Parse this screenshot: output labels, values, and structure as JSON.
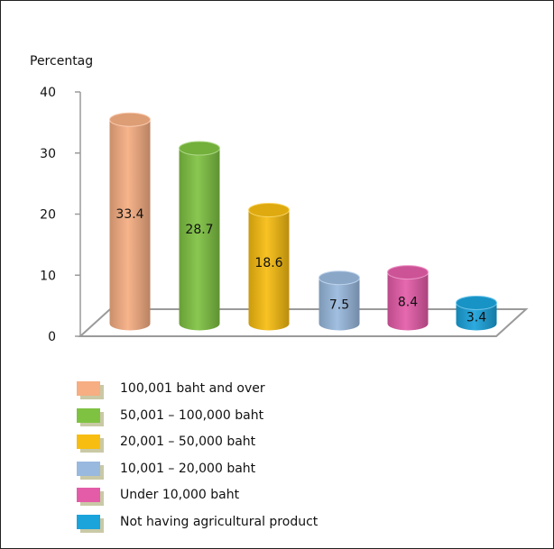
{
  "chart_data": {
    "type": "bar",
    "ylabel": "Percentag",
    "ylim": [
      0,
      40
    ],
    "yticks": [
      0,
      10,
      20,
      30,
      40
    ],
    "legend_position": "bottom",
    "categories": [
      "100,001 baht  and over",
      "50,001 – 100,000 baht",
      "20,001 – 50,000 baht",
      "10,001 – 20,000 baht",
      "Under 10,000 baht",
      "Not having agricultural product"
    ],
    "values": [
      33.4,
      28.7,
      18.6,
      7.5,
      8.4,
      3.4
    ],
    "value_labels": [
      "33.4",
      "28.7",
      "18.6",
      "7.5",
      "8.4",
      "3.4"
    ],
    "colors": [
      "#f6ae82",
      "#7fc242",
      "#f7bd11",
      "#99b9de",
      "#e45ca8",
      "#1ba3dc"
    ]
  }
}
